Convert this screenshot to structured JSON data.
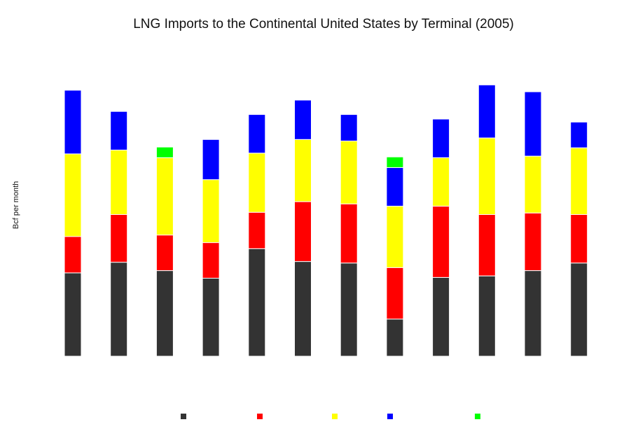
{
  "chart_data": {
    "type": "bar",
    "stacked": true,
    "title": "LNG Imports to the Continental United States by Terminal (2005)",
    "ylabel": "Bcf per month",
    "xlabel": "",
    "categories": [
      "",
      "",
      "",
      "",
      "",
      "",
      "",
      "",
      "",
      "",
      "",
      ""
    ],
    "ylim": [
      0,
      70
    ],
    "grid": false,
    "legend_position": "bottom",
    "series": [
      {
        "name": "",
        "color": "#333333",
        "values": [
          22.0,
          24.8,
          22.6,
          20.6,
          28.4,
          25.0,
          24.6,
          9.8,
          20.8,
          21.2,
          22.6,
          24.6
        ]
      },
      {
        "name": "",
        "color": "#ff0000",
        "values": [
          9.6,
          12.6,
          9.4,
          9.4,
          9.6,
          15.8,
          15.6,
          13.6,
          18.8,
          16.2,
          15.2,
          12.8
        ]
      },
      {
        "name": "",
        "color": "#ffff00",
        "values": [
          21.8,
          17.0,
          20.4,
          16.6,
          15.6,
          16.4,
          16.6,
          16.2,
          12.8,
          20.2,
          15.0,
          17.6
        ]
      },
      {
        "name": "",
        "color": "#0000ff",
        "values": [
          16.8,
          10.2,
          0.0,
          10.6,
          10.2,
          10.4,
          7.0,
          10.2,
          10.2,
          14.0,
          17.0,
          6.8
        ]
      },
      {
        "name": "",
        "color": "#00ff00",
        "values": [
          0.0,
          0.0,
          2.8,
          0.0,
          0.0,
          0.0,
          0.0,
          2.8,
          0.0,
          0.0,
          0.0,
          0.0
        ]
      }
    ]
  }
}
